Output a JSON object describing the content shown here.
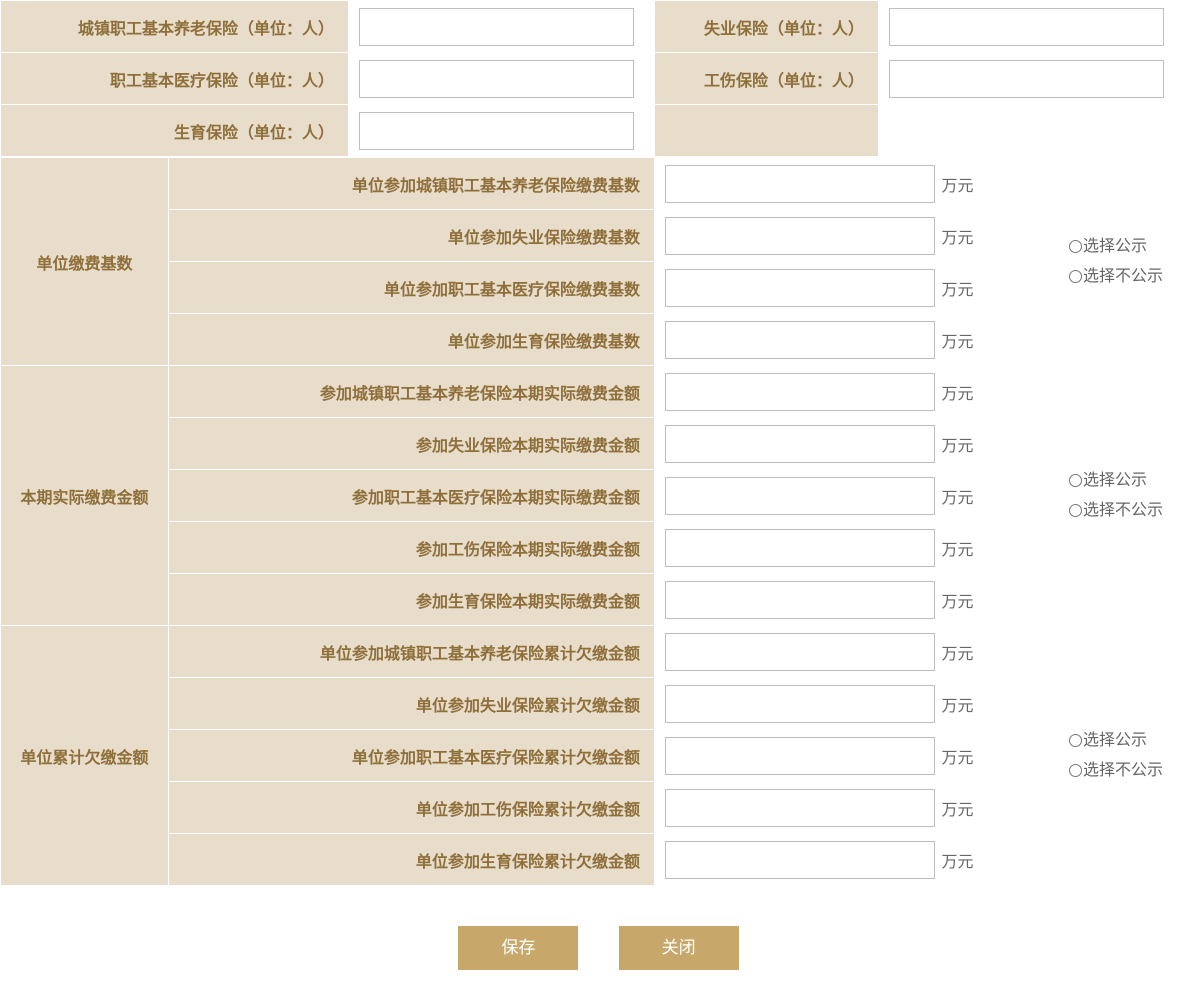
{
  "topFields": {
    "pension": "城镇职工基本养老保险（单位：人）",
    "unemployment": "失业保险（单位：人）",
    "medical": "职工基本医疗保险（单位：人）",
    "injury": "工伤保险（单位：人）",
    "maternity": "生育保险（单位：人）"
  },
  "unit": "万元",
  "radio": {
    "show": "选择公示",
    "hide": "选择不公示"
  },
  "sections": {
    "base": {
      "header": "单位缴费基数",
      "rows": [
        "单位参加城镇职工基本养老保险缴费基数",
        "单位参加失业保险缴费基数",
        "单位参加职工基本医疗保险缴费基数",
        "单位参加生育保险缴费基数"
      ]
    },
    "actual": {
      "header": "本期实际缴费金额",
      "rows": [
        "参加城镇职工基本养老保险本期实际缴费金额",
        "参加失业保险本期实际缴费金额",
        "参加职工基本医疗保险本期实际缴费金额",
        "参加工伤保险本期实际缴费金额",
        "参加生育保险本期实际缴费金额"
      ]
    },
    "owed": {
      "header": "单位累计欠缴金额",
      "rows": [
        "单位参加城镇职工基本养老保险累计欠缴金额",
        "单位参加失业保险累计欠缴金额",
        "单位参加职工基本医疗保险累计欠缴金额",
        "单位参加工伤保险累计欠缴金额",
        "单位参加生育保险累计欠缴金额"
      ]
    }
  },
  "buttons": {
    "save": "保存",
    "close": "关闭"
  }
}
